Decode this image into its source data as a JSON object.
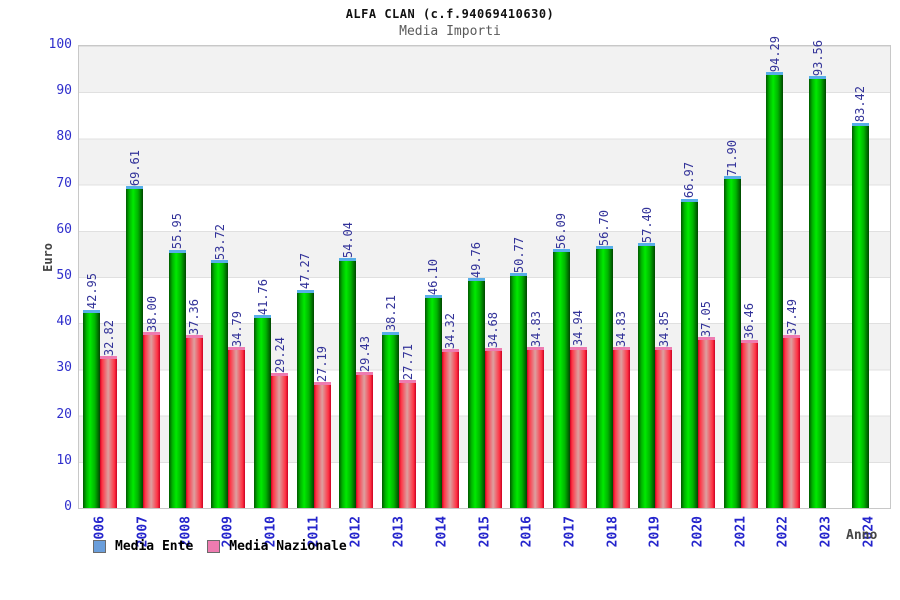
{
  "chart": {
    "title": "ALFA CLAN (c.f.94069410630)",
    "subtitle": "Media Importi",
    "y_axis_title": "Euro",
    "x_axis_title": "Anno",
    "legend": [
      {
        "label": "Media Ente",
        "swatch": "#6a9edb"
      },
      {
        "label": "Media Nazionale",
        "swatch": "#ee7bb0"
      }
    ],
    "colors": {
      "bar_ente_body": "#00ea00",
      "bar_ente_cap": "#58aee8",
      "bar_naz_body": "#ff3344",
      "bar_naz_cap": "#ee7bb0",
      "value_label_text": "#333399",
      "axis_tick_text": "#2e2ecc",
      "year_label_text": "#2424cc",
      "axis_title_text": "#444444",
      "band_fill": "#f2f2f2",
      "gridline": "#e0e0e0",
      "plot_border": "#c8c8c8"
    }
  },
  "chart_data": {
    "type": "bar",
    "title": "ALFA CLAN (c.f.94069410630)",
    "subtitle": "Media Importi",
    "xlabel": "Anno",
    "ylabel": "Euro",
    "ylim": [
      0,
      100
    ],
    "yticks": [
      0,
      10,
      20,
      30,
      40,
      50,
      60,
      70,
      80,
      90,
      100
    ],
    "grid": true,
    "legend_position": "bottom-left",
    "categories": [
      "2006",
      "2007",
      "2008",
      "2009",
      "2010",
      "2011",
      "2012",
      "2013",
      "2014",
      "2015",
      "2016",
      "2017",
      "2018",
      "2019",
      "2020",
      "2021",
      "2022",
      "2023",
      "2024"
    ],
    "series": [
      {
        "name": "Media Ente",
        "values": [
          42.95,
          69.61,
          55.95,
          53.72,
          41.76,
          47.27,
          54.04,
          38.21,
          46.1,
          49.76,
          50.77,
          56.09,
          56.7,
          57.4,
          66.97,
          71.9,
          94.29,
          93.56,
          83.42
        ]
      },
      {
        "name": "Media Nazionale",
        "values": [
          32.82,
          38.0,
          37.36,
          34.79,
          29.24,
          27.19,
          29.43,
          27.71,
          34.32,
          34.68,
          34.83,
          34.94,
          34.83,
          34.85,
          37.05,
          36.46,
          37.49,
          null,
          null
        ]
      }
    ]
  }
}
